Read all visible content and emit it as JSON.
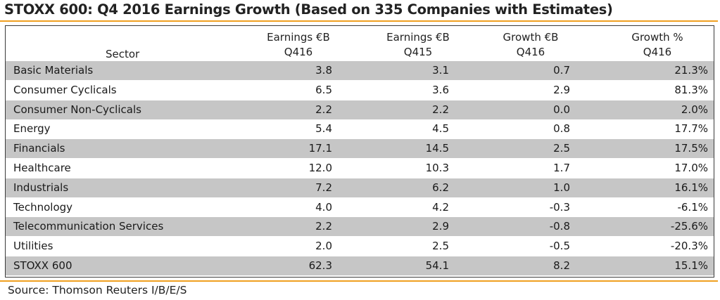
{
  "title": "STOXX 600: Q4 2016 Earnings Growth (Based on 335 Companies with Estimates)",
  "source": "Source: Thomson Reuters I/B/E/S",
  "colors": {
    "accent_rule": "#f0a020",
    "row_shade": "#c6c6c6",
    "border": "#3a3a3a"
  },
  "chart_data": {
    "type": "table",
    "title": "STOXX 600: Q4 2016 Earnings Growth (Based on 335 Companies with Estimates)",
    "columns": [
      {
        "line1": "",
        "line2": "Sector"
      },
      {
        "line1": "Earnings €B",
        "line2": "Q416"
      },
      {
        "line1": "Earnings €B",
        "line2": "Q415"
      },
      {
        "line1": "Growth €B",
        "line2": "Q416"
      },
      {
        "line1": "Growth %",
        "line2": "Q416"
      }
    ],
    "rows": [
      {
        "sector": "Basic Materials",
        "q416": "3.8",
        "q415": "3.1",
        "growth_eur": "0.7",
        "growth_pct": "21.3%"
      },
      {
        "sector": "Consumer Cyclicals",
        "q416": "6.5",
        "q415": "3.6",
        "growth_eur": "2.9",
        "growth_pct": "81.3%"
      },
      {
        "sector": "Consumer Non-Cyclicals",
        "q416": "2.2",
        "q415": "2.2",
        "growth_eur": "0.0",
        "growth_pct": "2.0%"
      },
      {
        "sector": "Energy",
        "q416": "5.4",
        "q415": "4.5",
        "growth_eur": "0.8",
        "growth_pct": "17.7%"
      },
      {
        "sector": "Financials",
        "q416": "17.1",
        "q415": "14.5",
        "growth_eur": "2.5",
        "growth_pct": "17.5%"
      },
      {
        "sector": "Healthcare",
        "q416": "12.0",
        "q415": "10.3",
        "growth_eur": "1.7",
        "growth_pct": "17.0%"
      },
      {
        "sector": "Industrials",
        "q416": "7.2",
        "q415": "6.2",
        "growth_eur": "1.0",
        "growth_pct": "16.1%"
      },
      {
        "sector": "Technology",
        "q416": "4.0",
        "q415": "4.2",
        "growth_eur": "-0.3",
        "growth_pct": "-6.1%"
      },
      {
        "sector": "Telecommunication Services",
        "q416": "2.2",
        "q415": "2.9",
        "growth_eur": "-0.8",
        "growth_pct": "-25.6%"
      },
      {
        "sector": "Utilities",
        "q416": "2.0",
        "q415": "2.5",
        "growth_eur": "-0.5",
        "growth_pct": "-20.3%"
      },
      {
        "sector": "STOXX 600",
        "q416": "62.3",
        "q415": "54.1",
        "growth_eur": "8.2",
        "growth_pct": "15.1%"
      }
    ]
  }
}
